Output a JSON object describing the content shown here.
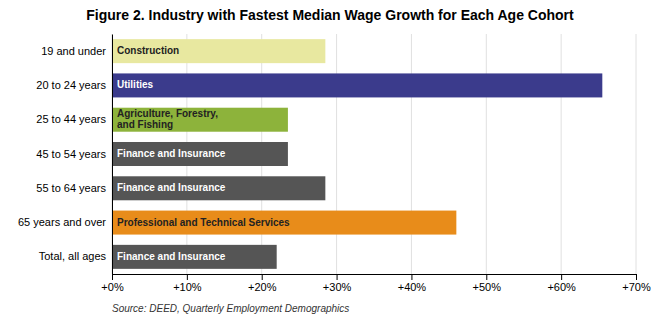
{
  "chart_data": {
    "type": "bar",
    "orientation": "horizontal",
    "title": "Figure 2. Industry with Fastest Median Wage Growth for Each Age Cohort",
    "categories": [
      "19 and under",
      "20 to 24 years",
      "25 to 44 years",
      "45 to 54 years",
      "55 to 64 years",
      "65 years and over",
      "Total, all ages"
    ],
    "values": [
      0.285,
      0.655,
      0.235,
      0.235,
      0.285,
      0.46,
      0.22
    ],
    "colors": [
      "#e8e8a0",
      "#3b3b8c",
      "#8db33b",
      "#555555",
      "#555555",
      "#e88c1a",
      "#555555"
    ],
    "annotations": [
      "Construction",
      "Utilities",
      "Agriculture, Forestry,\nand Fishing",
      "Finance and Insurance",
      "Finance and Insurance",
      "Professional and Technical Services",
      "Finance and Insurance"
    ],
    "xlim": [
      0,
      0.7
    ],
    "xticks": [
      {
        "value": 0.0,
        "label": "+0%"
      },
      {
        "value": 0.1,
        "label": "+10%"
      },
      {
        "value": 0.2,
        "label": "+20%"
      },
      {
        "value": 0.3,
        "label": "+30%"
      },
      {
        "value": 0.4,
        "label": "+40%"
      },
      {
        "value": 0.5,
        "label": "+50%"
      },
      {
        "value": 0.6,
        "label": "+60%"
      },
      {
        "value": 0.7,
        "label": "+70%"
      }
    ],
    "grid": true,
    "source": "Source: DEED, Quarterly Employment Demographics"
  }
}
